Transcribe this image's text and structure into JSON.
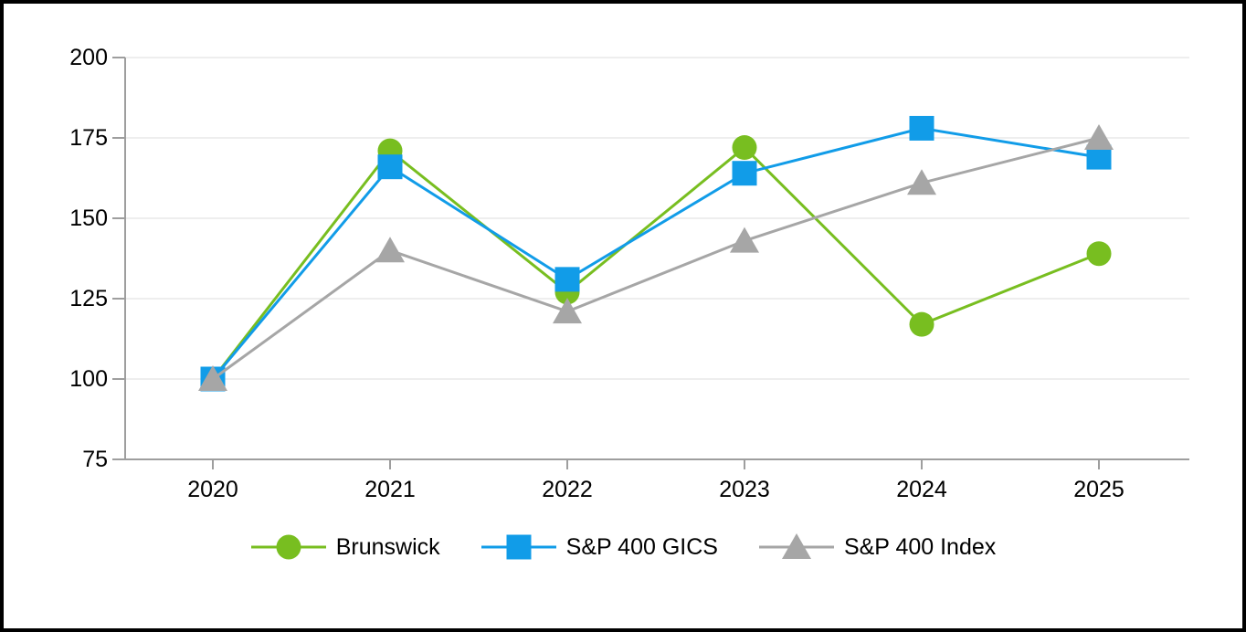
{
  "chart_data": {
    "type": "line",
    "title": "",
    "categories": [
      "2020",
      "2021",
      "2022",
      "2023",
      "2024",
      "2025"
    ],
    "series": [
      {
        "name": "Brunswick",
        "marker": "circle",
        "color": "#78BE20",
        "values": [
          100,
          171,
          127,
          172,
          117,
          139
        ]
      },
      {
        "name": "S&P 400 GICS",
        "marker": "square",
        "color": "#119CE8",
        "values": [
          100,
          166,
          131,
          164,
          178,
          169
        ]
      },
      {
        "name": "S&P 400 Index",
        "marker": "triangle",
        "color": "#A6A6A6",
        "values": [
          100,
          140,
          121,
          143,
          161,
          175
        ]
      }
    ],
    "xlabel": "",
    "ylabel": "",
    "ylim": [
      75,
      200
    ],
    "y_ticks": [
      75,
      100,
      125,
      150,
      175,
      200
    ],
    "grid": true,
    "legend_position": "bottom"
  },
  "styles": {
    "background": "#FFFFFF",
    "frame_border_color": "#000000",
    "grid_color": "#E8E8E8",
    "axis_color": "#9E9E9E",
    "tick_label_color": "#000000"
  }
}
